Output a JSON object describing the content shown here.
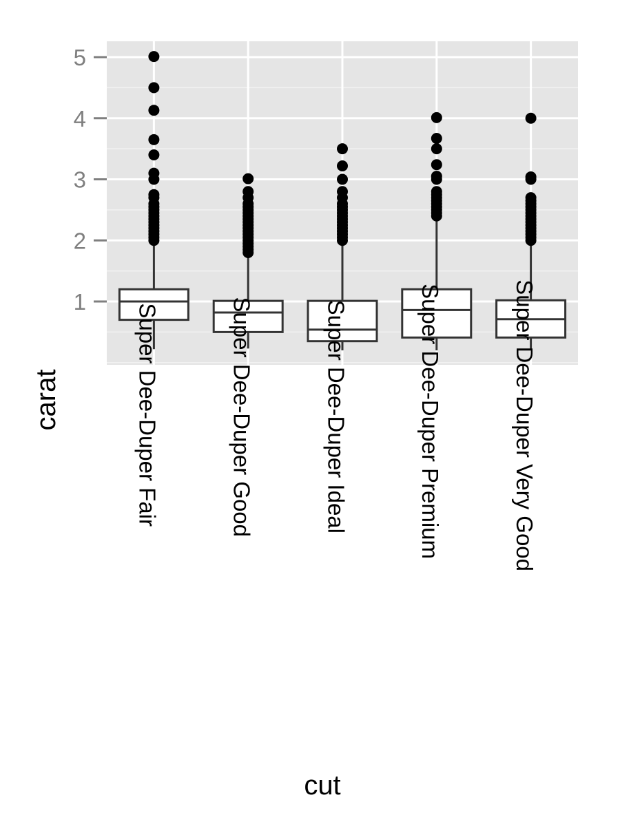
{
  "chart_data": {
    "type": "box",
    "xlabel": "cut",
    "ylabel": "carat",
    "ylim": [
      -0.05,
      5.25
    ],
    "yticks": [
      1,
      2,
      3,
      4,
      5
    ],
    "y_minor_ticks": [
      0.5,
      1.5,
      2.5,
      3.5,
      4.5
    ],
    "grid": true,
    "legend": "none",
    "colors": {
      "panel": "#e5e5e5",
      "grid": "#ffffff",
      "box_fill": "#ffffff",
      "box_line": "#333333",
      "outlier": "#000000",
      "tick_label": "#7f7f7f"
    },
    "categories": [
      "Super Dee-Duper Fair",
      "Super Dee-Duper Good",
      "Super Dee-Duper Ideal",
      "Super Dee-Duper Premium",
      "Super Dee-Duper Very Good"
    ],
    "boxes": [
      {
        "min": 0.22,
        "q1": 0.7,
        "median": 1.0,
        "q3": 1.2,
        "max": 1.95,
        "outliers": [
          2.0,
          2.05,
          2.1,
          2.15,
          2.2,
          2.25,
          2.3,
          2.35,
          2.4,
          2.45,
          2.5,
          2.55,
          2.6,
          2.7,
          2.75,
          3.0,
          3.1,
          3.4,
          3.65,
          4.13,
          4.5,
          5.01
        ]
      },
      {
        "min": 0.23,
        "q1": 0.5,
        "median": 0.82,
        "q3": 1.01,
        "max": 1.78,
        "outliers": [
          1.8,
          1.85,
          1.9,
          1.95,
          2.0,
          2.05,
          2.1,
          2.15,
          2.2,
          2.25,
          2.3,
          2.35,
          2.4,
          2.45,
          2.5,
          2.55,
          2.6,
          2.7,
          2.8,
          3.01
        ]
      },
      {
        "min": 0.2,
        "q1": 0.35,
        "median": 0.54,
        "q3": 1.01,
        "max": 1.96,
        "outliers": [
          2.0,
          2.05,
          2.1,
          2.15,
          2.2,
          2.25,
          2.3,
          2.35,
          2.4,
          2.45,
          2.5,
          2.55,
          2.6,
          2.7,
          2.8,
          3.0,
          3.22,
          3.5
        ]
      },
      {
        "min": 0.2,
        "q1": 0.41,
        "median": 0.86,
        "q3": 1.2,
        "max": 2.39,
        "outliers": [
          2.4,
          2.45,
          2.5,
          2.55,
          2.6,
          2.65,
          2.7,
          2.75,
          2.8,
          3.0,
          3.05,
          3.24,
          3.5,
          3.67,
          4.01
        ]
      },
      {
        "min": 0.2,
        "q1": 0.41,
        "median": 0.71,
        "q3": 1.02,
        "max": 1.94,
        "outliers": [
          2.0,
          2.05,
          2.1,
          2.15,
          2.2,
          2.25,
          2.3,
          2.35,
          2.4,
          2.45,
          2.5,
          2.55,
          2.6,
          2.65,
          2.7,
          3.0,
          3.04,
          4.0
        ]
      }
    ]
  }
}
